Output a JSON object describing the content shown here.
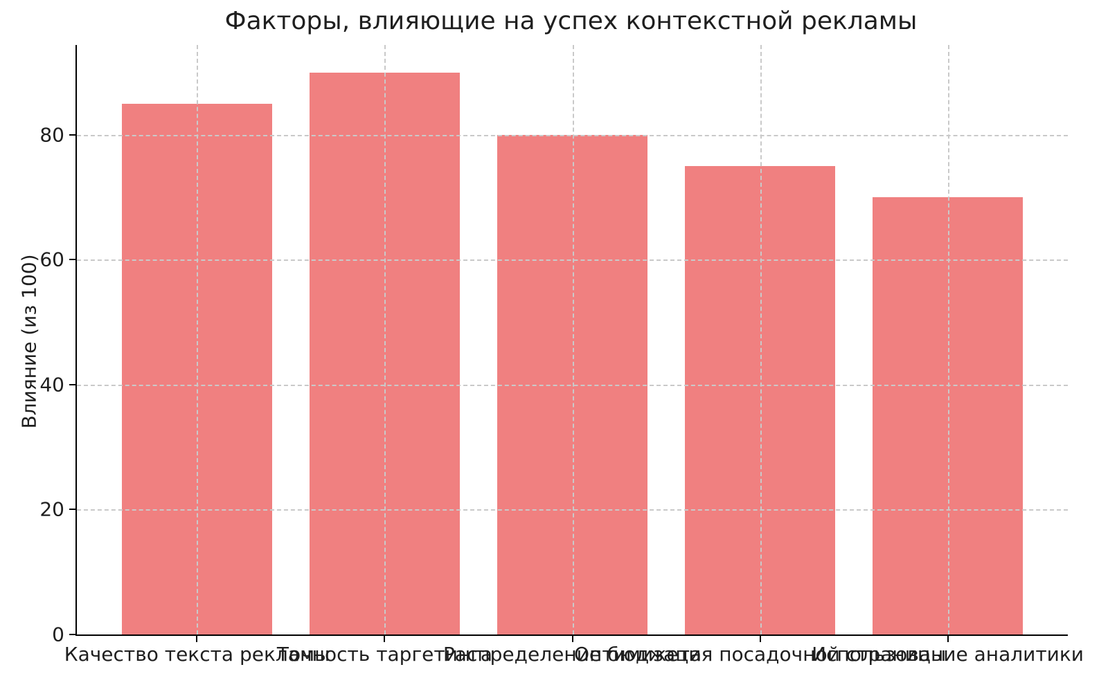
{
  "chart_data": {
    "type": "bar",
    "title": "Факторы, влияющие на успех контекстной рекламы",
    "ylabel": "Влияние (из 100)",
    "xlabel": "",
    "categories": [
      "Качество текста рекламы",
      "Точность таргетинга",
      "Распределение бюджета",
      "Оптимизация посадочной страницы",
      "Использование аналитики"
    ],
    "values": [
      85,
      90,
      80,
      75,
      70
    ],
    "yticks": [
      0,
      20,
      40,
      60,
      80
    ],
    "ylim": [
      0,
      94.4
    ],
    "xlim": [
      -0.64,
      4.64
    ],
    "bar_width_units": 0.8,
    "grid": "both-dashed",
    "legend": "none",
    "colors": {
      "bar": "#F08080",
      "grid": "#C9C9C9",
      "spine": "#000000",
      "text": "#1F1F1F",
      "background": "#FFFFFF"
    }
  }
}
